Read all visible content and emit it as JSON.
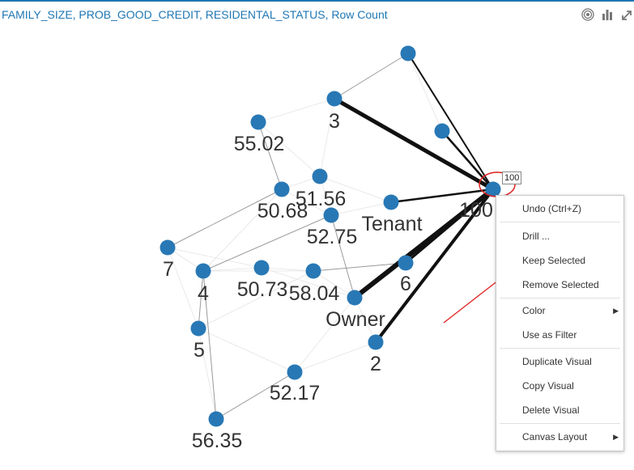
{
  "header": {
    "title": "FAMILY_SIZE, PROB_GOOD_CREDIT, RESIDENTAL_STATUS, Row Count",
    "accent_color": "#1f77b4",
    "icons": [
      "target-icon",
      "bar-chart-icon",
      "expand-icon"
    ]
  },
  "graph": {
    "node_color": "#2878b5",
    "nodes": [
      {
        "id": "n1",
        "label": ""
      },
      {
        "id": "n3",
        "label": "3"
      },
      {
        "id": "n5502",
        "label": "55.02"
      },
      {
        "id": "nb",
        "label": ""
      },
      {
        "id": "n100",
        "label": "100"
      },
      {
        "id": "n5156",
        "label": "51.56"
      },
      {
        "id": "n5068",
        "label": "50.68"
      },
      {
        "id": "ntenant",
        "label": "Tenant"
      },
      {
        "id": "n5275",
        "label": "52.75"
      },
      {
        "id": "n7",
        "label": "7"
      },
      {
        "id": "n4",
        "label": "4"
      },
      {
        "id": "n5073",
        "label": "50.73"
      },
      {
        "id": "n5804",
        "label": "58.04"
      },
      {
        "id": "n6",
        "label": "6"
      },
      {
        "id": "nowner",
        "label": "Owner"
      },
      {
        "id": "n5",
        "label": "5"
      },
      {
        "id": "n2",
        "label": "2"
      },
      {
        "id": "n5217",
        "label": "52.17"
      },
      {
        "id": "n5635",
        "label": "56.35"
      }
    ]
  },
  "tooltip": {
    "value": "100"
  },
  "context_menu": {
    "items": [
      {
        "label": "Undo (Ctrl+Z)",
        "has_submenu": false
      },
      {
        "label": "Drill ...",
        "has_submenu": false
      },
      {
        "label": "Keep Selected",
        "has_submenu": false
      },
      {
        "label": "Remove Selected",
        "has_submenu": false
      },
      {
        "label": "Color",
        "has_submenu": true
      },
      {
        "label": "Use as Filter",
        "has_submenu": false
      },
      {
        "label": "Duplicate Visual",
        "has_submenu": false
      },
      {
        "label": "Copy Visual",
        "has_submenu": false
      },
      {
        "label": "Delete Visual",
        "has_submenu": false
      },
      {
        "label": "Canvas Layout",
        "has_submenu": true
      }
    ]
  }
}
